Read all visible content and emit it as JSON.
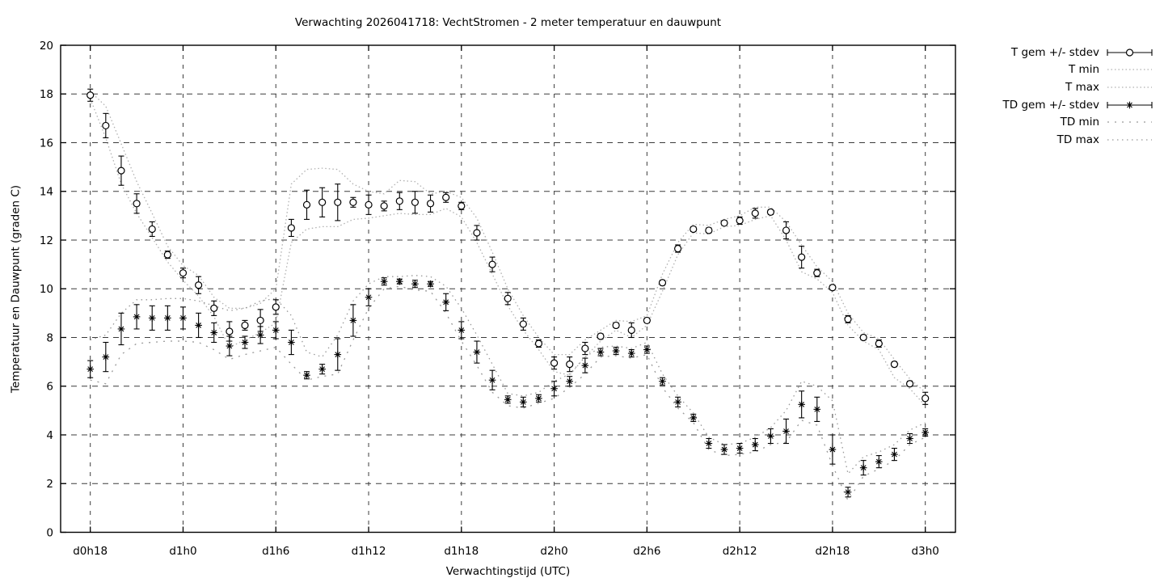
{
  "title": "Verwachting 2026041718: VechtStromen - 2 meter temperatuur en dauwpunt",
  "colors": {
    "foreground": "#000000",
    "t_envelope": "#b0b0b0",
    "td_envelope": "#999999",
    "background": "#ffffff"
  },
  "chart_data": {
    "type": "line",
    "title": "Verwachting 2026041718: VechtStromen - 2 meter temperatuur en dauwpunt",
    "xlabel": "Verwachtingstijd (UTC)",
    "ylabel": "Temperatuur en Dauwpunt (graden C)",
    "ylim": [
      0,
      20
    ],
    "ytick_step": 2,
    "grid": true,
    "legend_position": "outside-top-right",
    "x_hours_start": 18,
    "x_hours_end": 72,
    "x_step_hours": 1,
    "xticks": [
      {
        "hour": 18,
        "label": "d0h18"
      },
      {
        "hour": 24,
        "label": "d1h0"
      },
      {
        "hour": 30,
        "label": "d1h6"
      },
      {
        "hour": 36,
        "label": "d1h12"
      },
      {
        "hour": 42,
        "label": "d1h18"
      },
      {
        "hour": 48,
        "label": "d2h0"
      },
      {
        "hour": 54,
        "label": "d2h6"
      },
      {
        "hour": 60,
        "label": "d2h12"
      },
      {
        "hour": 66,
        "label": "d2h18"
      },
      {
        "hour": 72,
        "label": "d3h0"
      }
    ],
    "series": [
      {
        "name": "T gem +/- stdev",
        "type": "errorbar",
        "marker": "circle",
        "color": "#000000",
        "values": [
          17.95,
          16.7,
          14.85,
          13.5,
          12.45,
          11.4,
          10.65,
          10.15,
          9.2,
          8.25,
          8.5,
          8.7,
          9.25,
          12.5,
          13.45,
          13.55,
          13.55,
          13.55,
          13.45,
          13.4,
          13.6,
          13.55,
          13.5,
          13.75,
          13.4,
          12.3,
          11.0,
          9.6,
          8.55,
          7.75,
          6.95,
          6.9,
          7.55,
          8.05,
          8.5,
          8.3,
          8.7,
          10.25,
          11.65,
          12.45,
          12.4,
          12.7,
          12.8,
          13.1,
          13.15,
          12.4,
          11.3,
          10.65,
          10.05,
          8.75,
          8.0,
          7.75,
          6.9,
          6.1,
          5.5
        ],
        "stdev": [
          0.25,
          0.5,
          0.6,
          0.4,
          0.3,
          0.15,
          0.2,
          0.35,
          0.3,
          0.4,
          0.2,
          0.45,
          0.3,
          0.35,
          0.6,
          0.6,
          0.75,
          0.2,
          0.4,
          0.2,
          0.35,
          0.45,
          0.35,
          0.2,
          0.15,
          0.3,
          0.3,
          0.25,
          0.25,
          0.15,
          0.25,
          0.3,
          0.25,
          0.1,
          0.1,
          0.3,
          0.1,
          0.1,
          0.15,
          0.1,
          0.1,
          0.1,
          0.15,
          0.2,
          0.1,
          0.35,
          0.45,
          0.15,
          0.1,
          0.15,
          0.1,
          0.15,
          0.1,
          0.1,
          0.25
        ]
      },
      {
        "name": "T min",
        "type": "dotted",
        "color": "#b0b0b0",
        "dash": "1.5,3",
        "values": [
          17.8,
          16.2,
          14.3,
          13.1,
          12.1,
          11.1,
          10.35,
          9.7,
          8.85,
          7.6,
          7.9,
          8.2,
          8.6,
          11.9,
          12.45,
          12.55,
          12.55,
          12.85,
          12.9,
          13.0,
          13.1,
          13.05,
          13.05,
          13.3,
          12.95,
          11.9,
          10.6,
          9.3,
          8.3,
          7.5,
          6.6,
          6.45,
          7.2,
          7.85,
          8.3,
          8.0,
          8.5,
          9.9,
          11.4,
          12.3,
          12.25,
          12.55,
          12.6,
          12.85,
          13.0,
          12.0,
          10.7,
          10.4,
          9.85,
          8.5,
          7.85,
          7.5,
          6.35,
          5.9,
          5.2
        ]
      },
      {
        "name": "T max",
        "type": "dotted",
        "color": "#b0b0b0",
        "dash": "1.5,3",
        "values": [
          18.1,
          17.5,
          15.95,
          14.4,
          13.1,
          11.75,
          10.95,
          10.55,
          9.65,
          9.2,
          9.2,
          9.4,
          10.0,
          14.3,
          14.9,
          14.95,
          14.9,
          14.3,
          14.0,
          13.9,
          14.45,
          14.4,
          13.9,
          14.0,
          13.75,
          12.9,
          11.5,
          10.0,
          8.9,
          8.0,
          7.3,
          7.3,
          7.9,
          8.3,
          8.7,
          8.65,
          8.9,
          10.6,
          11.9,
          12.65,
          12.6,
          12.85,
          13.0,
          13.35,
          13.35,
          12.75,
          11.8,
          10.9,
          10.3,
          9.0,
          8.2,
          7.95,
          7.1,
          6.3,
          5.75
        ]
      },
      {
        "name": "TD gem +/- stdev",
        "type": "errorbar",
        "marker": "asterisk",
        "color": "#000000",
        "values": [
          6.7,
          7.2,
          8.35,
          8.85,
          8.8,
          8.8,
          8.8,
          8.5,
          8.2,
          7.65,
          7.8,
          8.1,
          8.3,
          7.8,
          6.45,
          6.7,
          7.3,
          8.7,
          9.65,
          10.3,
          10.3,
          10.2,
          10.2,
          9.45,
          8.3,
          7.4,
          6.25,
          5.45,
          5.35,
          5.5,
          5.9,
          6.2,
          6.85,
          7.4,
          7.45,
          7.35,
          7.5,
          6.2,
          5.35,
          4.7,
          3.65,
          3.4,
          3.45,
          3.6,
          3.95,
          4.15,
          5.25,
          5.05,
          3.4,
          1.65,
          2.65,
          2.9,
          3.2,
          3.85,
          4.1
        ],
        "stdev": [
          0.35,
          0.6,
          0.65,
          0.5,
          0.5,
          0.5,
          0.45,
          0.5,
          0.4,
          0.4,
          0.25,
          0.35,
          0.35,
          0.5,
          0.15,
          0.2,
          0.65,
          0.65,
          0.35,
          0.15,
          0.1,
          0.15,
          0.1,
          0.35,
          0.35,
          0.45,
          0.4,
          0.15,
          0.2,
          0.15,
          0.3,
          0.2,
          0.3,
          0.15,
          0.15,
          0.15,
          0.15,
          0.15,
          0.2,
          0.15,
          0.2,
          0.2,
          0.2,
          0.25,
          0.3,
          0.5,
          0.55,
          0.5,
          0.6,
          0.2,
          0.3,
          0.25,
          0.25,
          0.2,
          0.15
        ]
      },
      {
        "name": "TD min",
        "type": "dotted",
        "color": "#999999",
        "dash": "2,7",
        "values": [
          6.25,
          6.1,
          7.3,
          7.75,
          7.8,
          7.85,
          7.85,
          7.8,
          7.5,
          7.1,
          7.3,
          7.45,
          7.6,
          6.9,
          6.25,
          6.4,
          6.5,
          7.9,
          9.2,
          10.0,
          10.1,
          9.95,
          9.9,
          9.0,
          7.85,
          6.85,
          5.75,
          5.2,
          5.1,
          5.3,
          5.5,
          5.95,
          6.5,
          7.2,
          7.25,
          7.15,
          7.3,
          5.95,
          5.1,
          4.5,
          3.4,
          3.15,
          3.2,
          3.3,
          3.6,
          3.7,
          4.6,
          4.4,
          2.75,
          1.3,
          2.3,
          2.6,
          2.95,
          3.6,
          3.9
        ]
      },
      {
        "name": "TD max",
        "type": "dotted",
        "color": "#999999",
        "dash": "1.5,4.5",
        "values": [
          7.9,
          8.1,
          9.0,
          9.55,
          9.55,
          9.6,
          9.6,
          9.5,
          9.3,
          9.1,
          9.2,
          9.5,
          9.6,
          8.9,
          7.4,
          7.2,
          8.1,
          9.5,
          10.2,
          10.5,
          10.5,
          10.55,
          10.5,
          10.1,
          9.2,
          8.1,
          6.9,
          5.7,
          5.6,
          5.75,
          6.2,
          6.5,
          7.2,
          7.6,
          7.65,
          7.55,
          7.8,
          6.5,
          5.6,
          4.9,
          3.9,
          3.6,
          3.65,
          3.9,
          4.3,
          5.0,
          6.2,
          6.0,
          5.4,
          2.4,
          3.1,
          3.3,
          3.6,
          4.2,
          4.5
        ]
      }
    ]
  }
}
